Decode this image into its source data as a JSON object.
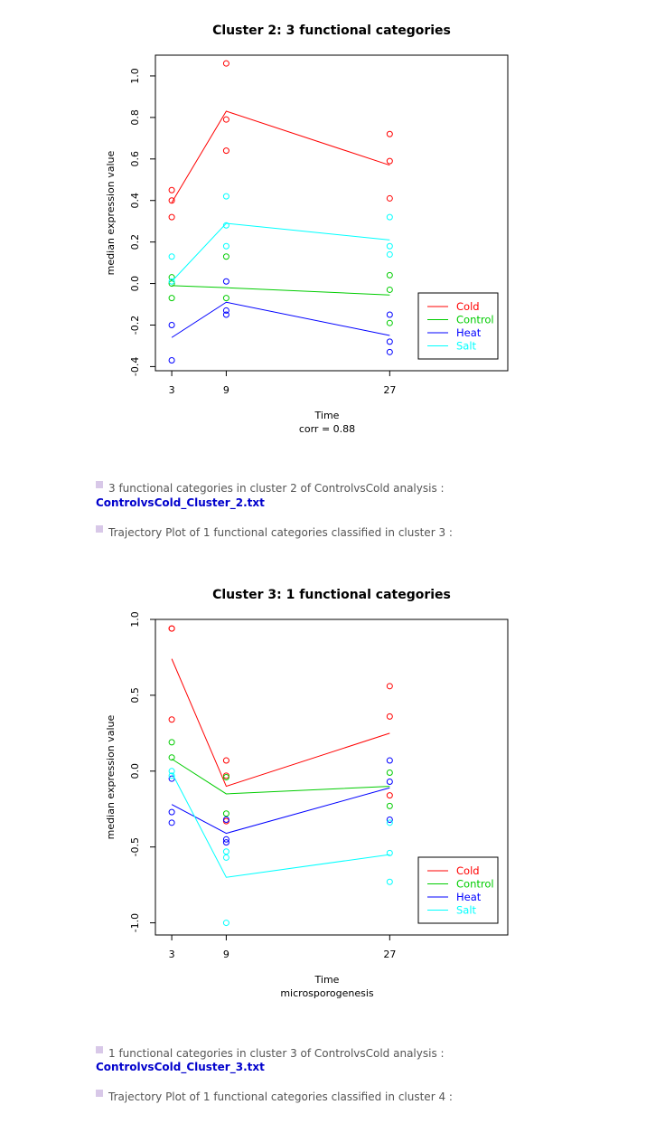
{
  "chart_data": [
    {
      "type": "line",
      "title": "Cluster 2: 3 functional categories",
      "xlabel": "Time",
      "sublabel": "corr =  0.88",
      "ylabel": "median expression value",
      "x": [
        3,
        9,
        27
      ],
      "x_ticks": [
        "3",
        "9",
        "27"
      ],
      "y_ticks": [
        "-0.4",
        "-0.2",
        "0.0",
        "0.2",
        "0.4",
        "0.6",
        "0.8",
        "1.0"
      ],
      "xlim": [
        1.2,
        40
      ],
      "ylim": [
        -0.42,
        1.1
      ],
      "legend_position": "bottom-right",
      "series": [
        {
          "name": "Cold",
          "color": "#ff0000",
          "line": [
            0.39,
            0.83,
            0.57
          ],
          "points": [
            [
              3,
              0.45
            ],
            [
              3,
              0.4
            ],
            [
              3,
              0.32
            ],
            [
              9,
              1.06
            ],
            [
              9,
              0.79
            ],
            [
              9,
              0.64
            ],
            [
              27,
              0.72
            ],
            [
              27,
              0.59
            ],
            [
              27,
              0.41
            ]
          ]
        },
        {
          "name": "Control",
          "color": "#00cc00",
          "line": [
            -0.01,
            -0.02,
            -0.055
          ],
          "points": [
            [
              3,
              0.03
            ],
            [
              3,
              0.0
            ],
            [
              3,
              -0.07
            ],
            [
              9,
              0.13
            ],
            [
              9,
              -0.07
            ],
            [
              27,
              0.04
            ],
            [
              27,
              -0.03
            ],
            [
              27,
              -0.19
            ]
          ]
        },
        {
          "name": "Heat",
          "color": "#0000ff",
          "line": [
            -0.26,
            -0.09,
            -0.25
          ],
          "points": [
            [
              3,
              -0.2
            ],
            [
              3,
              -0.37
            ],
            [
              9,
              0.01
            ],
            [
              9,
              -0.13
            ],
            [
              9,
              -0.15
            ],
            [
              27,
              -0.15
            ],
            [
              27,
              -0.28
            ],
            [
              27,
              -0.33
            ]
          ]
        },
        {
          "name": "Salt",
          "color": "#00ffff",
          "line": [
            0.01,
            0.29,
            0.21
          ],
          "points": [
            [
              3,
              0.13
            ],
            [
              3,
              0.01
            ],
            [
              9,
              0.42
            ],
            [
              9,
              0.28
            ],
            [
              9,
              0.18
            ],
            [
              27,
              0.32
            ],
            [
              27,
              0.18
            ],
            [
              27,
              0.14
            ]
          ]
        }
      ]
    },
    {
      "type": "line",
      "title": "Cluster 3: 1 functional categories",
      "xlabel": "Time",
      "sublabel": "microsporogenesis",
      "ylabel": "median expression value",
      "x": [
        3,
        9,
        27
      ],
      "x_ticks": [
        "3",
        "9",
        "27"
      ],
      "y_ticks": [
        "-1.0",
        "-0.5",
        "0.0",
        "0.5",
        "1.0"
      ],
      "xlim": [
        1.2,
        40
      ],
      "ylim": [
        -1.08,
        1.0
      ],
      "legend_position": "bottom-right",
      "series": [
        {
          "name": "Cold",
          "color": "#ff0000",
          "line": [
            0.74,
            -0.1,
            0.25
          ],
          "points": [
            [
              3,
              0.94
            ],
            [
              3,
              0.94
            ],
            [
              3,
              0.34
            ],
            [
              9,
              0.07
            ],
            [
              9,
              -0.03
            ],
            [
              9,
              -0.33
            ],
            [
              27,
              0.56
            ],
            [
              27,
              0.36
            ],
            [
              27,
              -0.16
            ]
          ]
        },
        {
          "name": "Control",
          "color": "#00cc00",
          "line": [
            0.08,
            -0.15,
            -0.1
          ],
          "points": [
            [
              3,
              0.19
            ],
            [
              3,
              0.09
            ],
            [
              9,
              -0.04
            ],
            [
              9,
              -0.28
            ],
            [
              27,
              -0.01
            ],
            [
              27,
              -0.23
            ]
          ]
        },
        {
          "name": "Heat",
          "color": "#0000ff",
          "line": [
            -0.22,
            -0.41,
            -0.11
          ],
          "points": [
            [
              3,
              -0.05
            ],
            [
              3,
              -0.27
            ],
            [
              3,
              -0.34
            ],
            [
              9,
              -0.32
            ],
            [
              9,
              -0.45
            ],
            [
              9,
              -0.47
            ],
            [
              27,
              0.07
            ],
            [
              27,
              -0.07
            ],
            [
              27,
              -0.32
            ]
          ]
        },
        {
          "name": "Salt",
          "color": "#00ffff",
          "line": [
            -0.01,
            -0.7,
            -0.55
          ],
          "points": [
            [
              3,
              0.0
            ],
            [
              3,
              -0.03
            ],
            [
              9,
              -0.53
            ],
            [
              9,
              -0.57
            ],
            [
              9,
              -1.0
            ],
            [
              27,
              -0.54
            ],
            [
              27,
              -0.34
            ],
            [
              27,
              -0.73
            ]
          ]
        }
      ]
    }
  ],
  "text": {
    "p1": "3 functional categories in cluster 2 of ControlvsCold analysis :",
    "link1": "ControlvsCold_Cluster_2.txt",
    "p2": "Trajectory Plot of 1 functional categories classified in cluster 3 :",
    "p3": "1 functional categories in cluster 3 of ControlvsCold analysis :",
    "link2": "ControlvsCold_Cluster_3.txt",
    "p4": "Trajectory Plot of 1 functional categories classified in cluster 4 :"
  }
}
